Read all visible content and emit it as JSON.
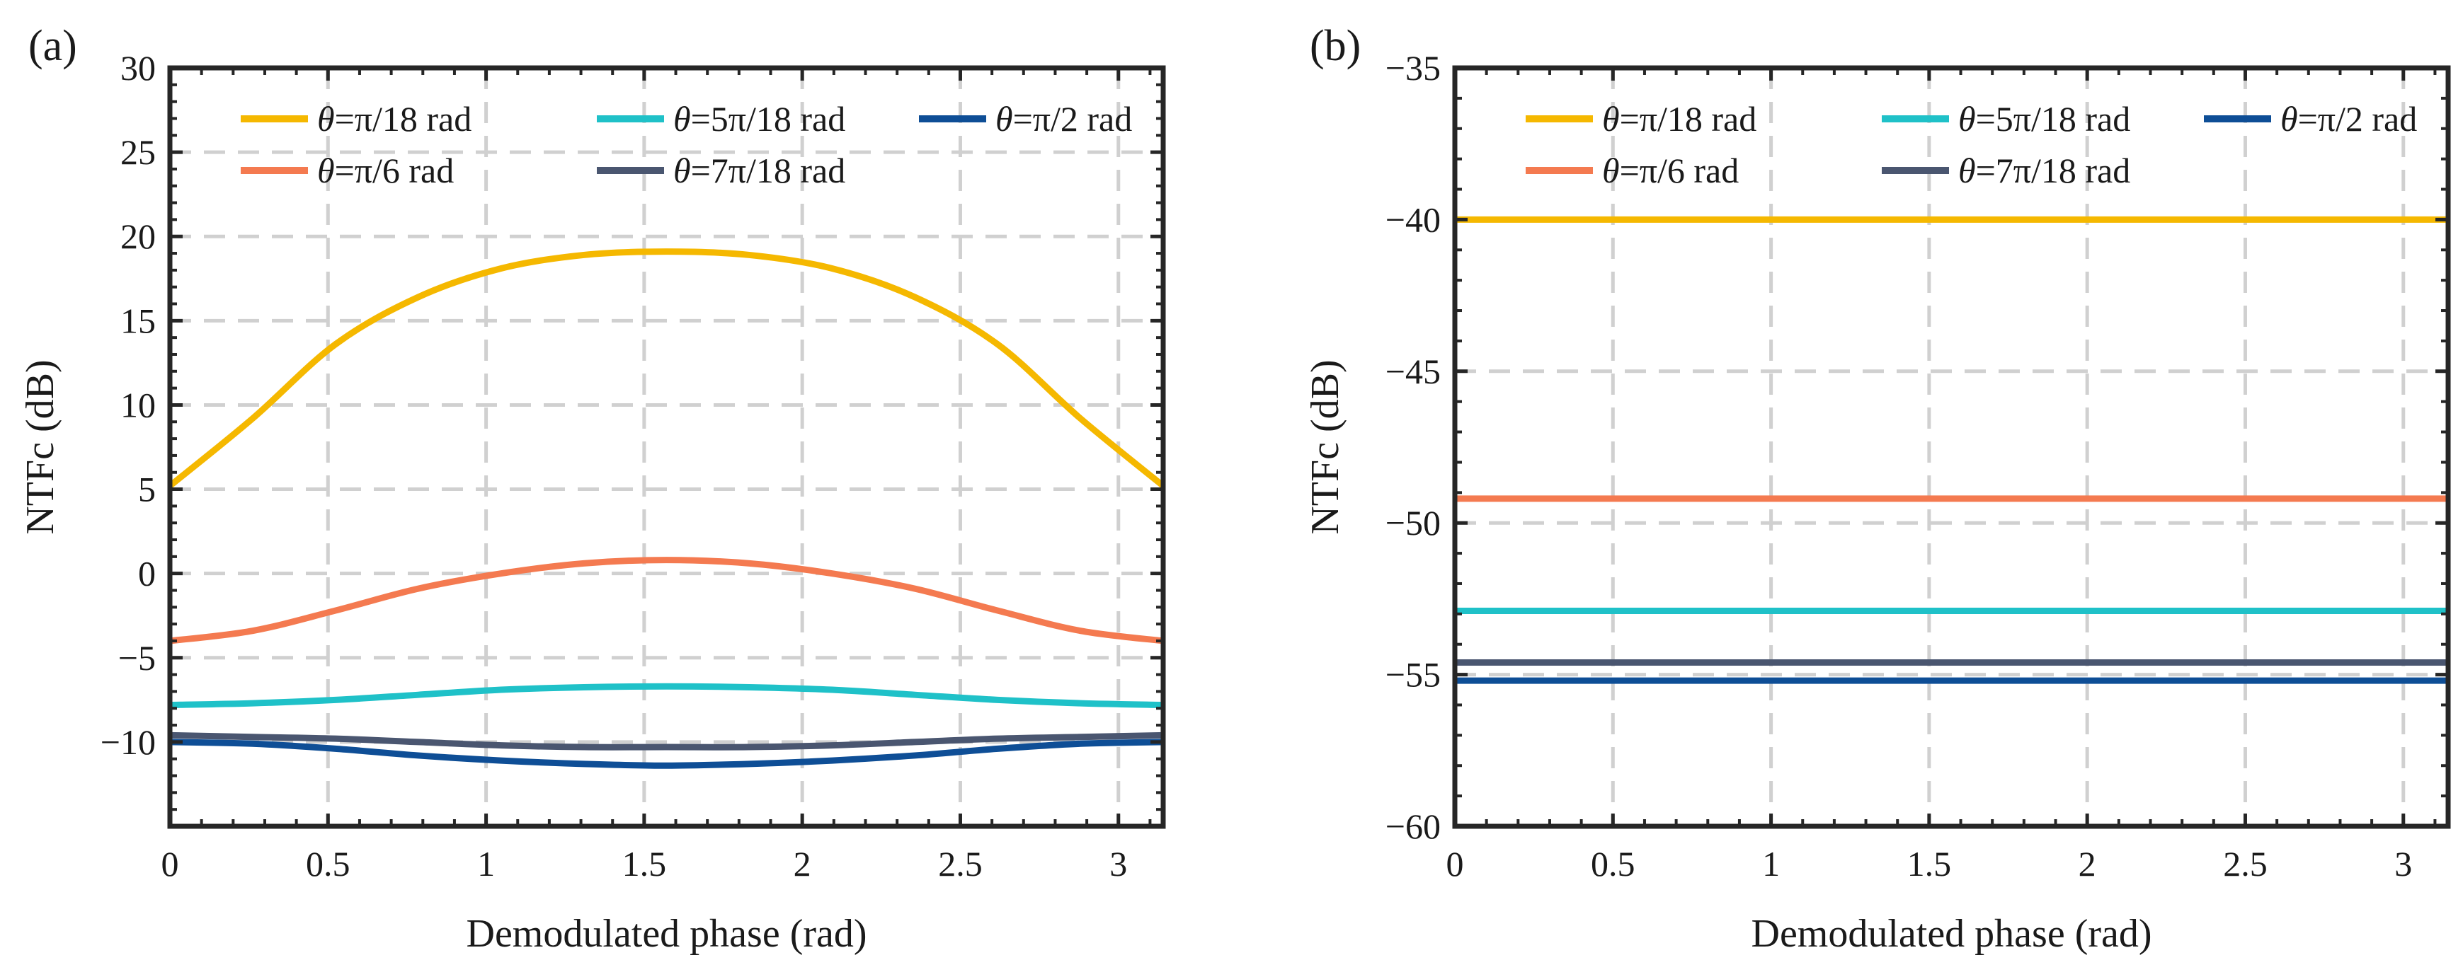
{
  "chart_data": [
    {
      "panel": "(a)",
      "type": "line",
      "xlabel": "Demodulated phase (rad)",
      "ylabel": "NTFc (dB)",
      "xlim": [
        0,
        3.1416
      ],
      "ylim": [
        -15,
        30
      ],
      "xticks": [
        0,
        0.5,
        1,
        1.5,
        2,
        2.5,
        3
      ],
      "xtick_labels": [
        "0",
        "0.5",
        "1",
        "1.5",
        "2",
        "2.5",
        "3"
      ],
      "yticks": [
        30,
        25,
        20,
        15,
        10,
        5,
        0,
        -5,
        -10
      ],
      "ytick_labels": [
        "30",
        "25",
        "20",
        "15",
        "10",
        "5",
        "0",
        "−5",
        "−10"
      ],
      "grid": true,
      "legend_position": "top",
      "series": [
        {
          "name": "θ=π/18 rad",
          "color": "#F5B800",
          "x": [
            0,
            0.2618,
            0.5236,
            0.7854,
            1.0472,
            1.309,
            1.5708,
            1.8326,
            2.0944,
            2.3562,
            2.618,
            2.8798,
            3.1416
          ],
          "values": [
            5.2,
            9.2,
            13.6,
            16.4,
            18.1,
            18.9,
            19.1,
            18.9,
            18.1,
            16.4,
            13.6,
            9.2,
            5.2
          ]
        },
        {
          "name": "θ=π/6 rad",
          "color": "#F47A50",
          "x": [
            0,
            0.2618,
            0.5236,
            0.7854,
            1.0472,
            1.309,
            1.5708,
            1.8326,
            2.0944,
            2.3562,
            2.618,
            2.8798,
            3.1416
          ],
          "values": [
            -4.0,
            -3.4,
            -2.2,
            -0.9,
            0.0,
            0.6,
            0.8,
            0.6,
            0.0,
            -0.9,
            -2.2,
            -3.4,
            -4.0
          ]
        },
        {
          "name": "θ=5π/18 rad",
          "color": "#1FC1C8",
          "x": [
            0,
            0.2618,
            0.5236,
            0.7854,
            1.0472,
            1.309,
            1.5708,
            1.8326,
            2.0944,
            2.3562,
            2.618,
            2.8798,
            3.1416
          ],
          "values": [
            -7.8,
            -7.7,
            -7.5,
            -7.2,
            -6.9,
            -6.75,
            -6.7,
            -6.75,
            -6.9,
            -7.2,
            -7.5,
            -7.7,
            -7.8
          ]
        },
        {
          "name": "θ=7π/18 rad",
          "color": "#4A5670",
          "x": [
            0,
            0.2618,
            0.5236,
            0.7854,
            1.0472,
            1.309,
            1.5708,
            1.8326,
            2.0944,
            2.3562,
            2.618,
            2.8798,
            3.1416
          ],
          "values": [
            -9.6,
            -9.7,
            -9.8,
            -10.0,
            -10.2,
            -10.3,
            -10.3,
            -10.3,
            -10.2,
            -10.0,
            -9.8,
            -9.7,
            -9.6
          ]
        },
        {
          "name": "θ=π/2 rad",
          "color": "#0E4E96",
          "x": [
            0,
            0.2618,
            0.5236,
            0.7854,
            1.0472,
            1.309,
            1.5708,
            1.8326,
            2.0944,
            2.3562,
            2.618,
            2.8798,
            3.1416
          ],
          "values": [
            -10.0,
            -10.1,
            -10.4,
            -10.8,
            -11.1,
            -11.3,
            -11.4,
            -11.3,
            -11.1,
            -10.8,
            -10.4,
            -10.1,
            -10.0
          ]
        }
      ]
    },
    {
      "panel": "(b)",
      "type": "line",
      "xlabel": "Demodulated phase (rad)",
      "ylabel": "NTFc (dB)",
      "xlim": [
        0,
        3.1416
      ],
      "ylim": [
        -60,
        -35
      ],
      "xticks": [
        0,
        0.5,
        1,
        1.5,
        2,
        2.5,
        3
      ],
      "xtick_labels": [
        "0",
        "0.5",
        "1",
        "1.5",
        "2",
        "2.5",
        "3"
      ],
      "yticks": [
        -35,
        -40,
        -45,
        -50,
        -55,
        -60
      ],
      "ytick_labels": [
        "−35",
        "−40",
        "−45",
        "−50",
        "−55",
        "−60"
      ],
      "grid": true,
      "legend_position": "top",
      "series": [
        {
          "name": "θ=π/18 rad",
          "color": "#F5B800",
          "x": [
            0,
            3.1416
          ],
          "values": [
            -40.0,
            -40.0
          ]
        },
        {
          "name": "θ=π/6 rad",
          "color": "#F47A50",
          "x": [
            0,
            3.1416
          ],
          "values": [
            -49.2,
            -49.2
          ]
        },
        {
          "name": "θ=5π/18 rad",
          "color": "#1FC1C8",
          "x": [
            0,
            3.1416
          ],
          "values": [
            -52.9,
            -52.9
          ]
        },
        {
          "name": "θ=7π/18 rad",
          "color": "#4A5670",
          "x": [
            0,
            3.1416
          ],
          "values": [
            -54.6,
            -54.6
          ]
        },
        {
          "name": "θ=π/2 rad",
          "color": "#0E4E96",
          "x": [
            0,
            3.1416
          ],
          "values": [
            -55.2,
            -55.2
          ]
        }
      ]
    }
  ]
}
